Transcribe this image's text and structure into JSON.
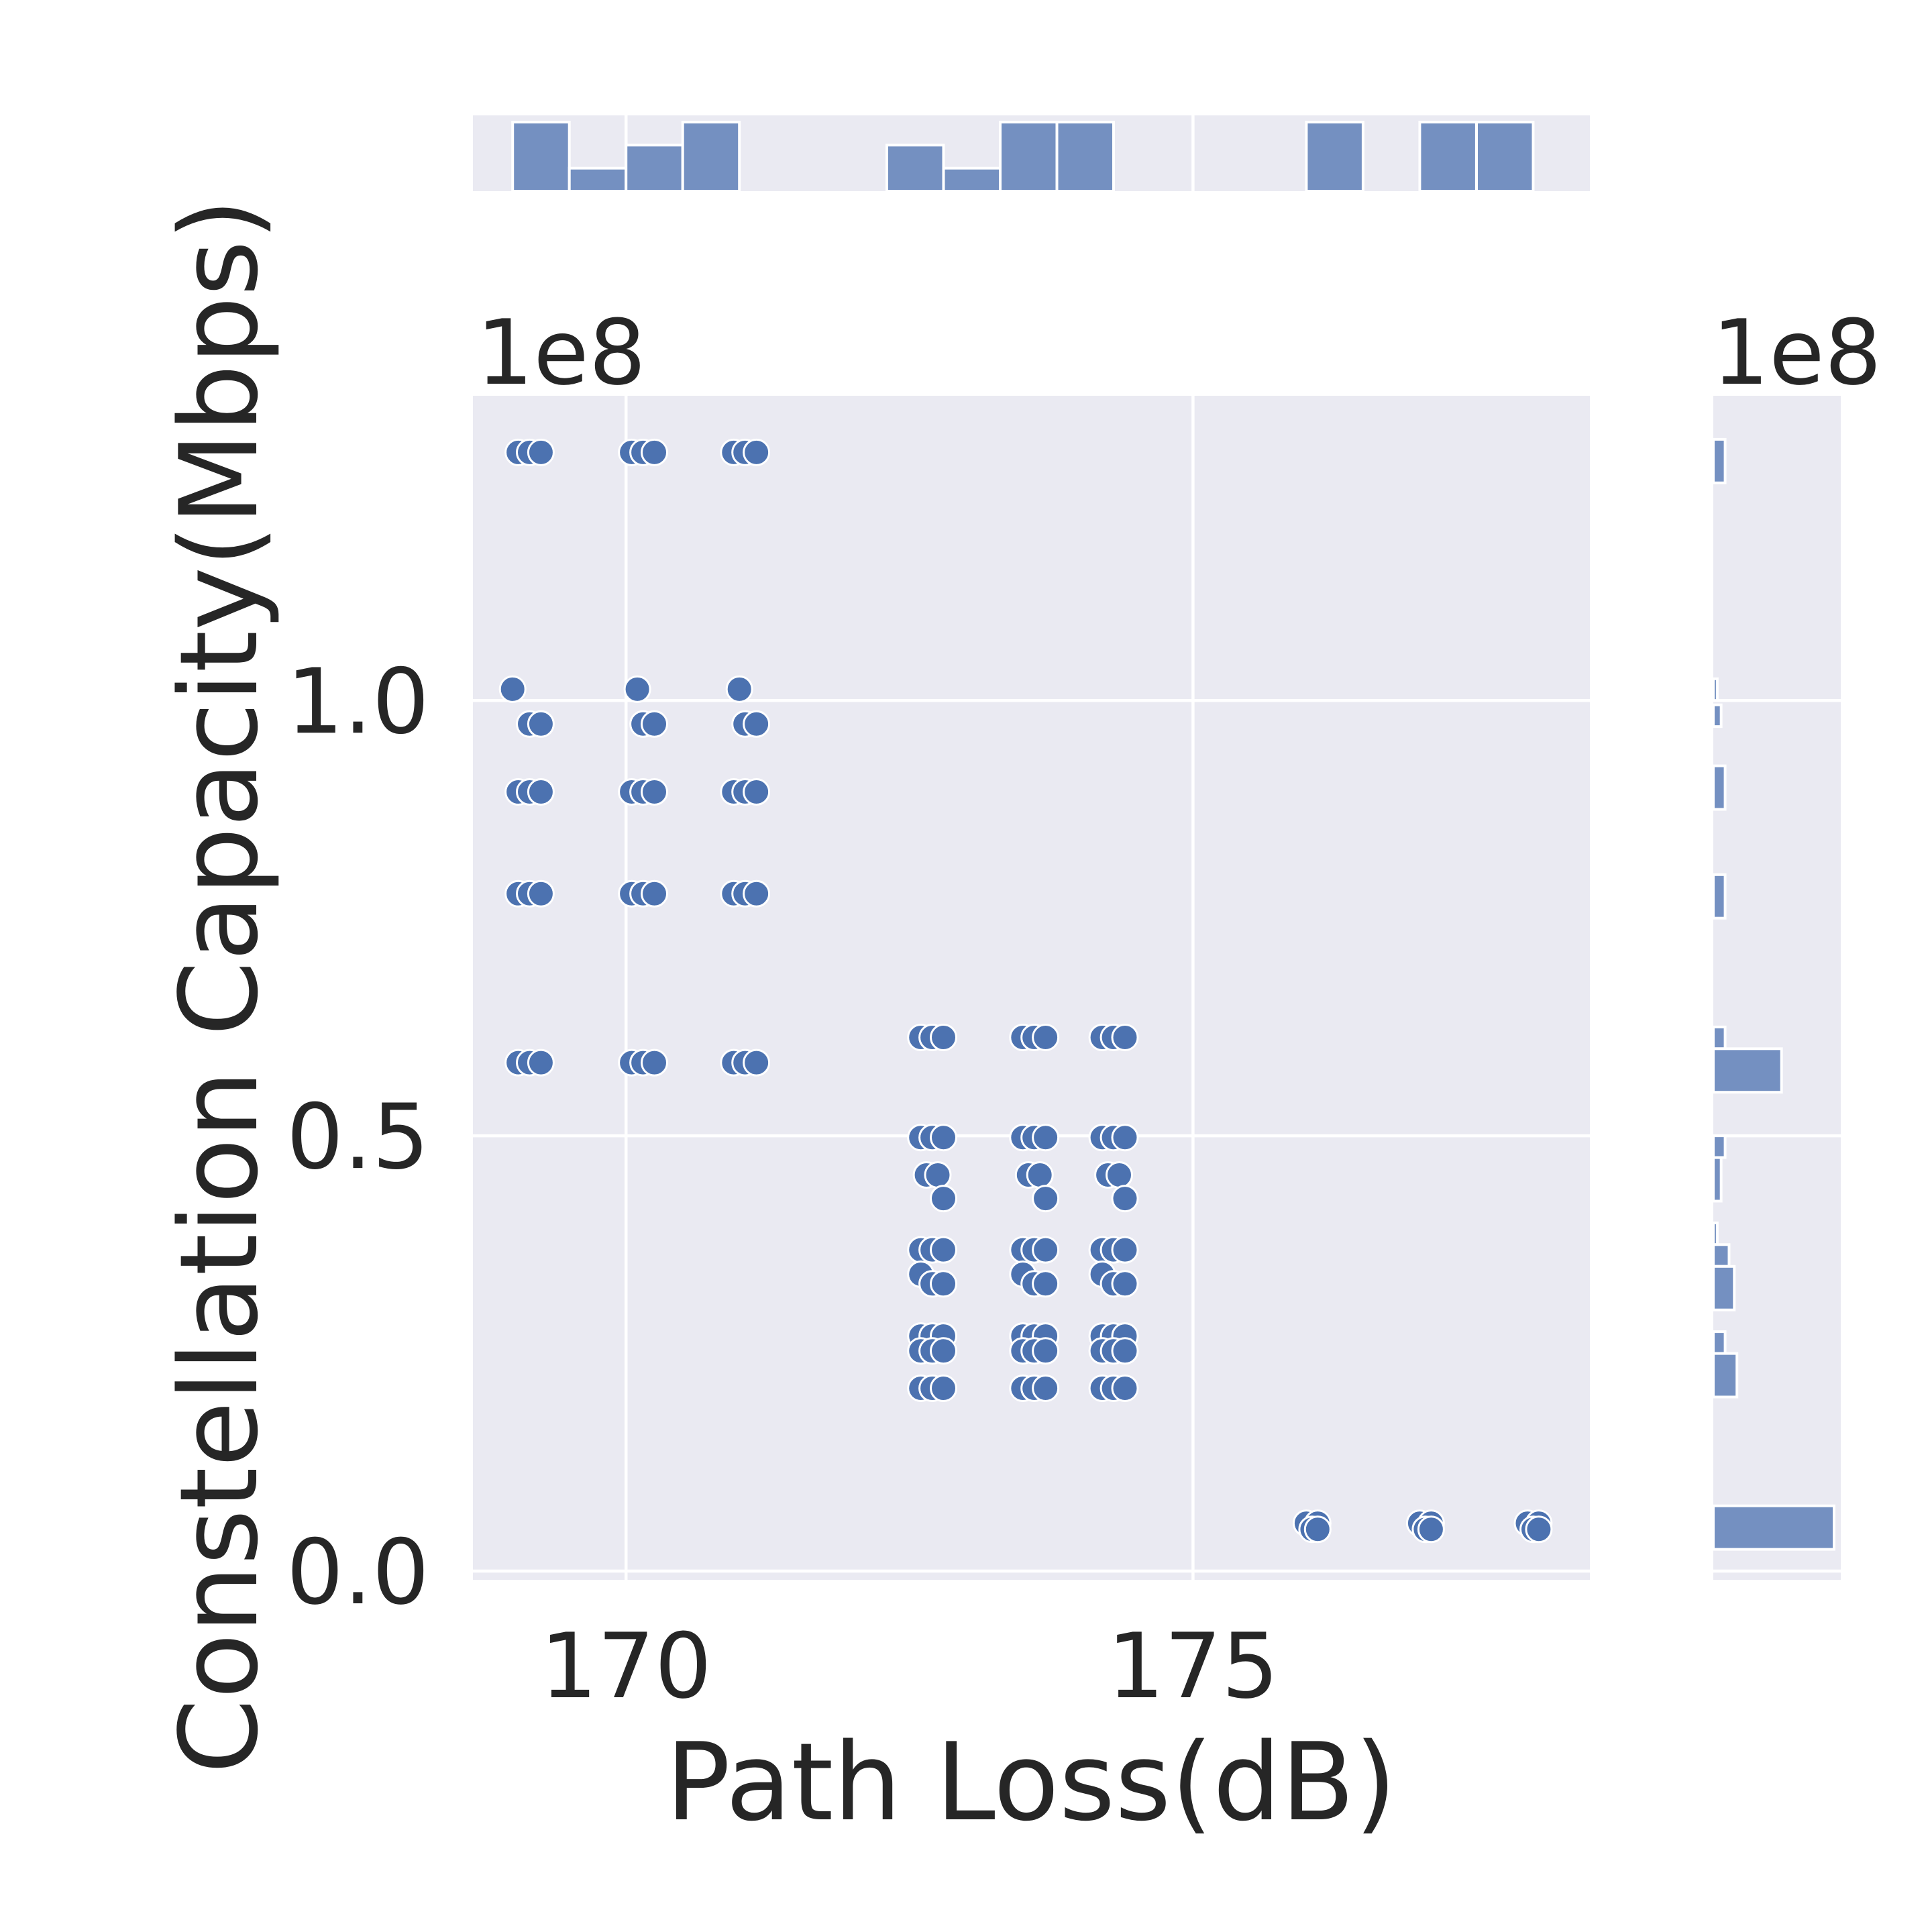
{
  "chart_data": {
    "type": "scatter",
    "style": "seaborn jointplot with marginal histograms",
    "xlabel": "Path Loss(dB)",
    "ylabel": "Constellation Capacity(Mbps)",
    "x_tick_labels": [
      "170",
      "175"
    ],
    "x_ticks": [
      170,
      175
    ],
    "y_tick_labels": [
      "0.0",
      "0.5",
      "1.0"
    ],
    "y_ticks": [
      0,
      50000000,
      100000000
    ],
    "y_offset_label": "1e8",
    "right_marginal_offset_label": "1e8",
    "xlim": [
      168.65,
      178.5
    ],
    "ylim": [
      -1000000,
      135000000
    ],
    "grid": true,
    "colors": {
      "points": "#4c72b0",
      "background": "#eaeaf2",
      "grid": "#ffffff",
      "text": "#262626"
    },
    "series": [
      {
        "points": [
          [
            169.05,
            128500000
          ],
          [
            169.15,
            128500000
          ],
          [
            169.25,
            128500000
          ],
          [
            170.05,
            128500000
          ],
          [
            170.15,
            128500000
          ],
          [
            170.25,
            128500000
          ],
          [
            170.95,
            128500000
          ],
          [
            171.05,
            128500000
          ],
          [
            171.15,
            128500000
          ],
          [
            169.0,
            101300000
          ],
          [
            170.1,
            101300000
          ],
          [
            171.0,
            101300000
          ],
          [
            169.15,
            97300000
          ],
          [
            169.25,
            97300000
          ],
          [
            170.15,
            97300000
          ],
          [
            170.25,
            97300000
          ],
          [
            171.05,
            97300000
          ],
          [
            171.15,
            97300000
          ],
          [
            169.05,
            89500000
          ],
          [
            169.15,
            89500000
          ],
          [
            169.25,
            89500000
          ],
          [
            170.05,
            89500000
          ],
          [
            170.15,
            89500000
          ],
          [
            170.25,
            89500000
          ],
          [
            170.95,
            89500000
          ],
          [
            171.05,
            89500000
          ],
          [
            171.15,
            89500000
          ],
          [
            169.05,
            77800000
          ],
          [
            169.15,
            77800000
          ],
          [
            169.25,
            77800000
          ],
          [
            170.05,
            77800000
          ],
          [
            170.15,
            77800000
          ],
          [
            170.25,
            77800000
          ],
          [
            170.95,
            77800000
          ],
          [
            171.05,
            77800000
          ],
          [
            171.15,
            77800000
          ],
          [
            169.05,
            58400000
          ],
          [
            169.15,
            58400000
          ],
          [
            169.25,
            58400000
          ],
          [
            170.05,
            58400000
          ],
          [
            170.15,
            58400000
          ],
          [
            170.25,
            58400000
          ],
          [
            170.95,
            58400000
          ],
          [
            171.05,
            58400000
          ],
          [
            171.15,
            58400000
          ],
          [
            172.6,
            61300000
          ],
          [
            172.7,
            61300000
          ],
          [
            172.8,
            61300000
          ],
          [
            173.5,
            61300000
          ],
          [
            173.6,
            61300000
          ],
          [
            173.7,
            61300000
          ],
          [
            174.2,
            61300000
          ],
          [
            174.3,
            61300000
          ],
          [
            174.4,
            61300000
          ],
          [
            172.6,
            49800000
          ],
          [
            172.7,
            49800000
          ],
          [
            172.8,
            49800000
          ],
          [
            173.5,
            49800000
          ],
          [
            173.6,
            49800000
          ],
          [
            173.7,
            49800000
          ],
          [
            174.2,
            49800000
          ],
          [
            174.3,
            49800000
          ],
          [
            174.4,
            49800000
          ],
          [
            172.65,
            45500000
          ],
          [
            172.75,
            45500000
          ],
          [
            173.55,
            45500000
          ],
          [
            173.65,
            45500000
          ],
          [
            174.25,
            45500000
          ],
          [
            174.35,
            45500000
          ],
          [
            172.8,
            42800000
          ],
          [
            173.7,
            42800000
          ],
          [
            174.4,
            42800000
          ],
          [
            172.6,
            36900000
          ],
          [
            172.7,
            36900000
          ],
          [
            172.8,
            36900000
          ],
          [
            173.5,
            36900000
          ],
          [
            173.6,
            36900000
          ],
          [
            173.7,
            36900000
          ],
          [
            174.2,
            36900000
          ],
          [
            174.3,
            36900000
          ],
          [
            174.4,
            36900000
          ],
          [
            172.6,
            34100000
          ],
          [
            173.5,
            34100000
          ],
          [
            174.2,
            34100000
          ],
          [
            172.7,
            33000000
          ],
          [
            172.8,
            33000000
          ],
          [
            173.6,
            33000000
          ],
          [
            173.7,
            33000000
          ],
          [
            174.3,
            33000000
          ],
          [
            174.4,
            33000000
          ],
          [
            172.6,
            27000000
          ],
          [
            172.7,
            27000000
          ],
          [
            172.8,
            27000000
          ],
          [
            173.5,
            27000000
          ],
          [
            173.6,
            27000000
          ],
          [
            173.7,
            27000000
          ],
          [
            174.2,
            27000000
          ],
          [
            174.3,
            27000000
          ],
          [
            174.4,
            27000000
          ],
          [
            172.6,
            25300000
          ],
          [
            172.7,
            25300000
          ],
          [
            172.8,
            25300000
          ],
          [
            173.5,
            25300000
          ],
          [
            173.6,
            25300000
          ],
          [
            173.7,
            25300000
          ],
          [
            174.2,
            25300000
          ],
          [
            174.3,
            25300000
          ],
          [
            174.4,
            25300000
          ],
          [
            172.6,
            21000000
          ],
          [
            172.7,
            21000000
          ],
          [
            172.8,
            21000000
          ],
          [
            173.5,
            21000000
          ],
          [
            173.6,
            21000000
          ],
          [
            173.7,
            21000000
          ],
          [
            174.2,
            21000000
          ],
          [
            174.3,
            21000000
          ],
          [
            174.4,
            21000000
          ],
          [
            176.0,
            5500000
          ],
          [
            176.1,
            5500000
          ],
          [
            176.05,
            4800000
          ],
          [
            176.1,
            4800000
          ],
          [
            177.0,
            5500000
          ],
          [
            177.1,
            5500000
          ],
          [
            177.05,
            4800000
          ],
          [
            177.1,
            4800000
          ],
          [
            177.95,
            5500000
          ],
          [
            178.05,
            5500000
          ],
          [
            178.0,
            4800000
          ],
          [
            178.05,
            4800000
          ]
        ]
      }
    ],
    "x_marginal_histogram": {
      "bins": [
        [
          169.0,
          169.5,
          15
        ],
        [
          169.5,
          170.0,
          5
        ],
        [
          170.0,
          170.5,
          10
        ],
        [
          170.5,
          171.0,
          15
        ],
        [
          172.3,
          172.8,
          10
        ],
        [
          172.8,
          173.3,
          5
        ],
        [
          173.3,
          173.8,
          15
        ],
        [
          173.8,
          174.3,
          15
        ],
        [
          176.0,
          176.5,
          15
        ],
        [
          177.0,
          177.5,
          15
        ],
        [
          177.5,
          178.0,
          15
        ]
      ]
    },
    "y_marginal_histogram": {
      "bins": [
        [
          125000000,
          130000000,
          9
        ],
        [
          100000000,
          102500000,
          3
        ],
        [
          97000000,
          99500000,
          6
        ],
        [
          87500000,
          92500000,
          9
        ],
        [
          75000000,
          80000000,
          9
        ],
        [
          60000000,
          62500000,
          9
        ],
        [
          55000000,
          60000000,
          52
        ],
        [
          47500000,
          50000000,
          9
        ],
        [
          42500000,
          47500000,
          6
        ],
        [
          37500000,
          40000000,
          3
        ],
        [
          35000000,
          37500000,
          12
        ],
        [
          30000000,
          35000000,
          16
        ],
        [
          25000000,
          27500000,
          9
        ],
        [
          20000000,
          25000000,
          18
        ],
        [
          2500000,
          7500000,
          92
        ]
      ]
    }
  }
}
